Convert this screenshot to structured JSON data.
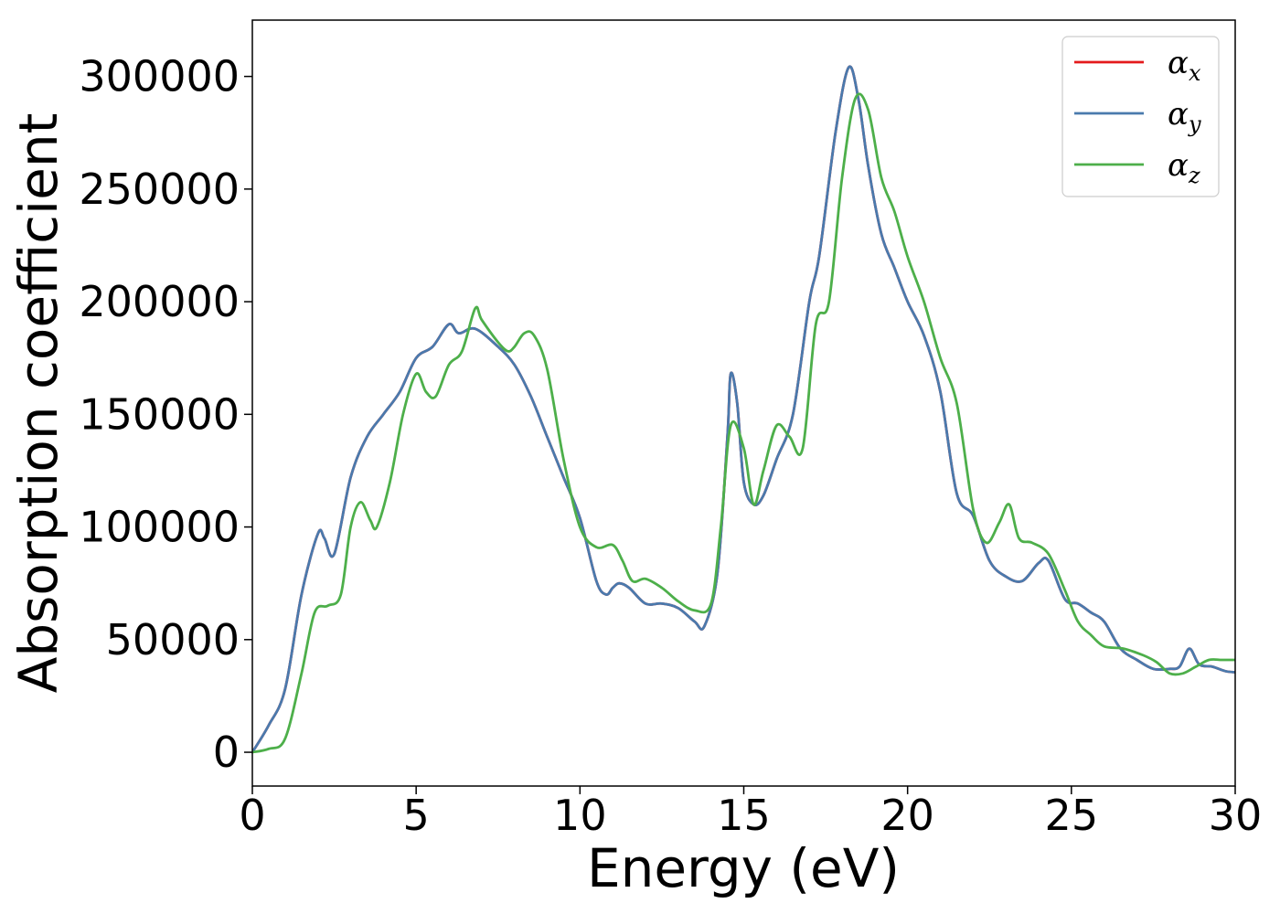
{
  "chart_data": {
    "type": "line",
    "title": "",
    "xlabel": "Energy (eV)",
    "ylabel": "Absorption coefficient",
    "xlim": [
      0,
      30
    ],
    "ylim": [
      -15000,
      325000
    ],
    "xticks": [
      0,
      5,
      10,
      15,
      20,
      25,
      30
    ],
    "xtick_labels": [
      "0",
      "5",
      "10",
      "15",
      "20",
      "25",
      "30"
    ],
    "yticks": [
      0,
      50000,
      100000,
      150000,
      200000,
      250000,
      300000
    ],
    "ytick_labels": [
      "0",
      "50000",
      "100000",
      "150000",
      "200000",
      "250000",
      "300000"
    ],
    "grid": false,
    "legend": {
      "position": "top-right",
      "entries": [
        {
          "symbol": "α",
          "sub": "x"
        },
        {
          "symbol": "α",
          "sub": "y"
        },
        {
          "symbol": "α",
          "sub": "z"
        }
      ]
    },
    "series": [
      {
        "name": "αx",
        "color": "#e41a1c",
        "x": [
          0,
          0.5,
          1,
          1.5,
          2,
          2.2,
          2.5,
          3,
          3.5,
          4,
          4.5,
          5,
          5.5,
          6,
          6.3,
          6.8,
          7.5,
          8,
          8.5,
          9,
          9.5,
          10,
          10.5,
          10.8,
          11,
          11.2,
          11.5,
          12,
          12.5,
          13,
          13.5,
          13.8,
          14.2,
          14.5,
          14.6,
          14.8,
          15,
          15.3,
          15.6,
          16,
          16.5,
          17,
          17.3,
          17.8,
          18.2,
          18.5,
          18.8,
          19.2,
          19.6,
          20,
          20.5,
          21,
          21.5,
          22,
          22.5,
          23,
          23.5,
          24,
          24.3,
          24.8,
          25.2,
          25.6,
          26,
          26.5,
          27,
          27.5,
          28,
          28.3,
          28.6,
          28.9,
          29.3,
          29.7,
          30
        ],
        "y": [
          0,
          12000,
          28000,
          70000,
          97000,
          95000,
          88000,
          122000,
          140000,
          150000,
          160000,
          175000,
          180000,
          190000,
          186000,
          188000,
          180000,
          172000,
          158000,
          140000,
          122000,
          104000,
          76000,
          70000,
          73000,
          75000,
          73000,
          66000,
          66000,
          64000,
          58000,
          56000,
          80000,
          140000,
          168000,
          155000,
          120000,
          110000,
          114000,
          130000,
          150000,
          200000,
          220000,
          275000,
          304000,
          290000,
          260000,
          230000,
          215000,
          200000,
          185000,
          160000,
          115000,
          105000,
          85000,
          78000,
          76000,
          84000,
          85000,
          68000,
          66000,
          62000,
          58000,
          46000,
          41000,
          37000,
          37000,
          38000,
          46000,
          39000,
          38000,
          36000,
          35500
        ]
      },
      {
        "name": "αy",
        "color": "#4a7aad",
        "x": [
          0,
          0.5,
          1,
          1.5,
          2,
          2.2,
          2.5,
          3,
          3.5,
          4,
          4.5,
          5,
          5.5,
          6,
          6.3,
          6.8,
          7.5,
          8,
          8.5,
          9,
          9.5,
          10,
          10.5,
          10.8,
          11,
          11.2,
          11.5,
          12,
          12.5,
          13,
          13.5,
          13.8,
          14.2,
          14.5,
          14.6,
          14.8,
          15,
          15.3,
          15.6,
          16,
          16.5,
          17,
          17.3,
          17.8,
          18.2,
          18.5,
          18.8,
          19.2,
          19.6,
          20,
          20.5,
          21,
          21.5,
          22,
          22.5,
          23,
          23.5,
          24,
          24.3,
          24.8,
          25.2,
          25.6,
          26,
          26.5,
          27,
          27.5,
          28,
          28.3,
          28.6,
          28.9,
          29.3,
          29.7,
          30
        ],
        "y": [
          0,
          12000,
          28000,
          70000,
          97000,
          95000,
          88000,
          122000,
          140000,
          150000,
          160000,
          175000,
          180000,
          190000,
          186000,
          188000,
          180000,
          172000,
          158000,
          140000,
          122000,
          104000,
          76000,
          70000,
          73000,
          75000,
          73000,
          66000,
          66000,
          64000,
          58000,
          56000,
          80000,
          140000,
          168000,
          155000,
          120000,
          110000,
          114000,
          130000,
          150000,
          200000,
          220000,
          275000,
          304000,
          290000,
          260000,
          230000,
          215000,
          200000,
          185000,
          160000,
          115000,
          105000,
          85000,
          78000,
          76000,
          84000,
          85000,
          68000,
          66000,
          62000,
          58000,
          46000,
          41000,
          37000,
          37000,
          38000,
          46000,
          39000,
          38000,
          36000,
          35500
        ]
      },
      {
        "name": "αz",
        "color": "#4daf4a",
        "x": [
          0,
          0.5,
          1,
          1.5,
          1.9,
          2.3,
          2.7,
          3.0,
          3.3,
          3.6,
          3.8,
          4.2,
          4.6,
          5.0,
          5.3,
          5.6,
          6.0,
          6.4,
          6.8,
          7.0,
          7.5,
          7.8,
          8.0,
          8.3,
          8.6,
          9.0,
          9.5,
          10,
          10.5,
          11.0,
          11.3,
          11.6,
          12.0,
          12.5,
          13.0,
          13.5,
          14.0,
          14.3,
          14.6,
          15.0,
          15.3,
          15.6,
          16.0,
          16.4,
          16.8,
          17.2,
          17.6,
          18.0,
          18.4,
          18.8,
          19.2,
          19.6,
          20.0,
          20.5,
          21.0,
          21.5,
          22.0,
          22.4,
          22.8,
          23.1,
          23.4,
          23.8,
          24.3,
          24.8,
          25.2,
          25.6,
          26.0,
          26.6,
          27.2,
          27.6,
          28.0,
          28.4,
          28.8,
          29.2,
          29.6,
          30
        ],
        "y": [
          0,
          1500,
          6000,
          35000,
          62000,
          65000,
          70000,
          100000,
          111000,
          103000,
          100000,
          120000,
          150000,
          168000,
          160000,
          158000,
          172000,
          178000,
          197000,
          192000,
          182000,
          178000,
          180000,
          186000,
          185000,
          170000,
          130000,
          100000,
          91000,
          92000,
          85000,
          76000,
          77000,
          73000,
          67000,
          63000,
          66000,
          100000,
          145000,
          135000,
          110000,
          125000,
          145000,
          140000,
          135000,
          190000,
          200000,
          255000,
          290000,
          285000,
          255000,
          240000,
          220000,
          200000,
          175000,
          155000,
          108000,
          93000,
          102000,
          110000,
          95000,
          93000,
          88000,
          72000,
          58000,
          52000,
          47000,
          46000,
          43000,
          40000,
          35000,
          35000,
          38000,
          41000,
          41000,
          41000
        ]
      }
    ]
  }
}
